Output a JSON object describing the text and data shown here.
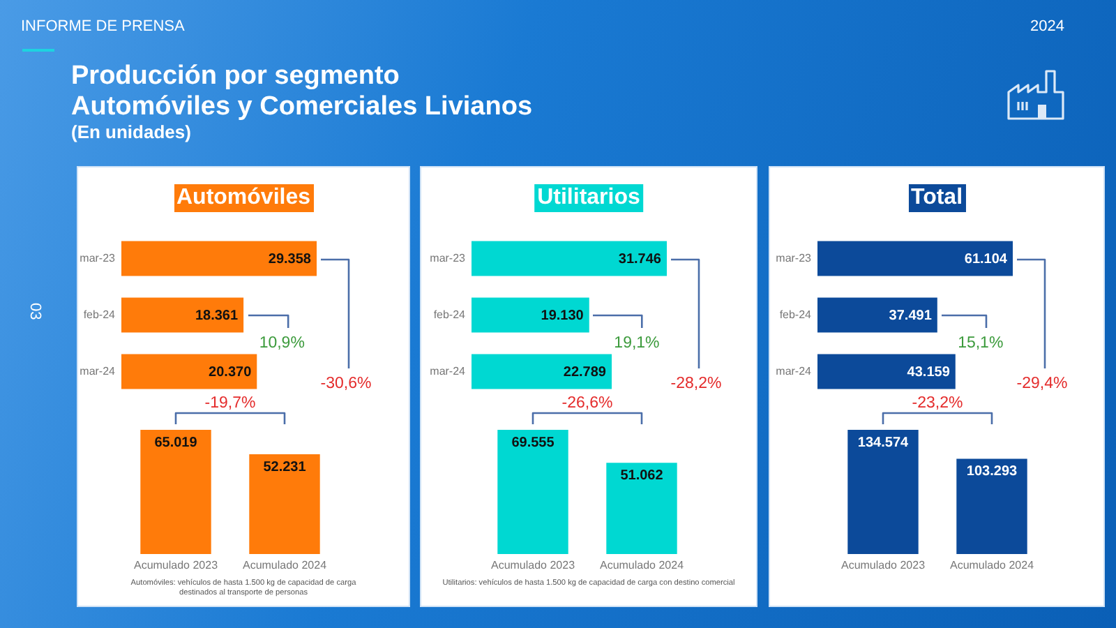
{
  "chart_data": [
    {
      "type": "other",
      "title": "Producción por segmento",
      "subtitle": "Automóviles y Comerciales Livianos",
      "annotations": [
        "(En unidades)",
        "INFORME DE PRENSA",
        "2024",
        "03"
      ]
    },
    {
      "type": "bar",
      "orientation": "horizontal",
      "title": "Automóviles",
      "categories": [
        "mar-23",
        "feb-24",
        "mar-24"
      ],
      "values": [
        29358,
        18361,
        20370
      ],
      "color": "#ff7b0a",
      "value_labels": [
        "29.358",
        "18.361",
        "20.370"
      ],
      "tick_labels": "y",
      "annotations": [
        "10,9%",
        "-30,6%"
      ]
    },
    {
      "type": "bar",
      "categories": [
        "Acumulado 2023",
        "Acumulado 2024"
      ],
      "values": [
        65019,
        52231
      ],
      "color": "#ff7b0a",
      "value_labels": [
        "65.019",
        "52.231"
      ],
      "tick_labels": "x",
      "annotations": [
        "-19,7%",
        "Automóviles: vehículos de hasta 1.500 kg de capacidad de carga destinados al transporte de personas"
      ]
    },
    {
      "type": "bar",
      "orientation": "horizontal",
      "title": "Utilitarios",
      "categories": [
        "mar-23",
        "feb-24",
        "mar-24"
      ],
      "values": [
        31746,
        19130,
        22789
      ],
      "color": "#00d8d2",
      "value_labels": [
        "31.746",
        "19.130",
        "22.789"
      ],
      "tick_labels": "y",
      "annotations": [
        "19,1%",
        "-28,2%"
      ]
    },
    {
      "type": "bar",
      "categories": [
        "Acumulado 2023",
        "Acumulado 2024"
      ],
      "values": [
        69555,
        51062
      ],
      "color": "#00d8d2",
      "value_labels": [
        "69.555",
        "51.062"
      ],
      "tick_labels": "x",
      "annotations": [
        "-26,6%",
        "Utilitarios: vehículos de hasta 1.500 kg de capacidad de carga con destino comercial"
      ]
    },
    {
      "type": "bar",
      "orientation": "horizontal",
      "title": "Total",
      "categories": [
        "mar-23",
        "feb-24",
        "mar-24"
      ],
      "values": [
        61104,
        37491,
        43159
      ],
      "color": "#0c4a9a",
      "value_labels": [
        "61.104",
        "37.491",
        "43.159"
      ],
      "tick_labels": "y",
      "annotations": [
        "15,1%",
        "-29,4%"
      ]
    },
    {
      "type": "bar",
      "categories": [
        "Acumulado 2023",
        "Acumulado 2024"
      ],
      "values": [
        134574,
        103293
      ],
      "color": "#0c4a9a",
      "value_labels": [
        "134.574",
        "103.293"
      ],
      "tick_labels": "x",
      "annotations": [
        "-23,2%"
      ]
    }
  ]
}
